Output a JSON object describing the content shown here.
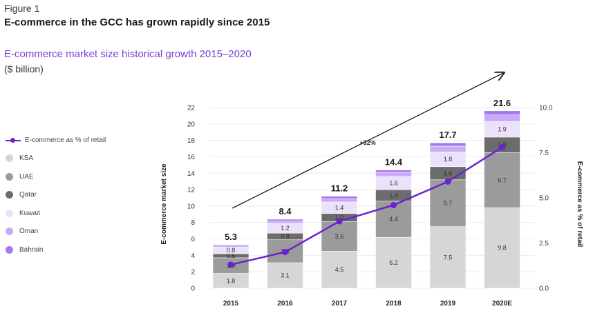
{
  "figure": {
    "label": "Figure 1",
    "title": "E-commerce in the GCC has grown rapidly since 2015"
  },
  "colors": {
    "KSA": "#d6d6d6",
    "UAE": "#9b9b9b",
    "Qatar": "#6c6c6c",
    "Kuwait": "#ece1fb",
    "Oman": "#c8abf5",
    "Bahrain": "#a878ee",
    "line": "#6a22d0"
  },
  "chart_data": {
    "type": "bar",
    "stacked": true,
    "title": "E-commerce market size historical growth 2015–2020",
    "unit": "($ billion)",
    "ylabel": "E-commerce market size",
    "y2label": "E-commerce as % of retail",
    "ylim": [
      0,
      22
    ],
    "y_ticks": [
      0,
      2,
      4,
      6,
      8,
      10,
      12,
      14,
      16,
      18,
      20,
      22
    ],
    "y2lim": [
      0,
      10
    ],
    "y2_ticks": [
      "0.0",
      "2.5",
      "5.0",
      "7.5",
      "10.0"
    ],
    "categories": [
      "2015",
      "2016",
      "2017",
      "2018",
      "2019",
      "2020E"
    ],
    "series": [
      {
        "name": "KSA",
        "values": [
          1.8,
          3.1,
          4.5,
          6.2,
          7.5,
          9.8
        ],
        "labels": [
          "1.8",
          "3.1",
          "4.5",
          "6.2",
          "7.5",
          "9.8"
        ]
      },
      {
        "name": "UAE",
        "values": [
          1.9,
          2.8,
          3.6,
          4.4,
          5.7,
          6.7
        ],
        "labels": [
          "1.9",
          "2.8",
          "3.6",
          "4.4",
          "5.7",
          "6.7"
        ]
      },
      {
        "name": "Qatar",
        "values": [
          0.5,
          0.8,
          1.0,
          1.4,
          1.6,
          1.9
        ],
        "labels": [
          "0.5",
          "0.8",
          "1.0",
          "1.4",
          "1.6",
          "1.9"
        ]
      },
      {
        "name": "Kuwait",
        "values": [
          0.8,
          1.2,
          1.4,
          1.6,
          1.8,
          1.9
        ],
        "labels": [
          "0.8",
          "1.2",
          "1.4",
          "1.6",
          "1.8",
          "1.9"
        ]
      },
      {
        "name": "Oman",
        "values": [
          0.2,
          0.3,
          0.4,
          0.5,
          0.7,
          0.8
        ],
        "labels": [
          "",
          "",
          "",
          "",
          "",
          ""
        ]
      },
      {
        "name": "Bahrain",
        "values": [
          0.1,
          0.2,
          0.3,
          0.3,
          0.4,
          0.5
        ],
        "labels": [
          "",
          "",
          "",
          "",
          "",
          ""
        ]
      }
    ],
    "totals": [
      "5.3",
      "8.4",
      "11.2",
      "14.4",
      "17.7",
      "21.6"
    ],
    "line_series": {
      "name": "E-commerce as % of retail",
      "values": [
        1.3,
        2.0,
        3.7,
        4.6,
        5.9,
        7.8
      ]
    },
    "annotation": "+32%",
    "legend": [
      "E-commerce as % of retail",
      "KSA",
      "UAE",
      "Qatar",
      "Kuwait",
      "Oman",
      "Bahrain"
    ]
  }
}
